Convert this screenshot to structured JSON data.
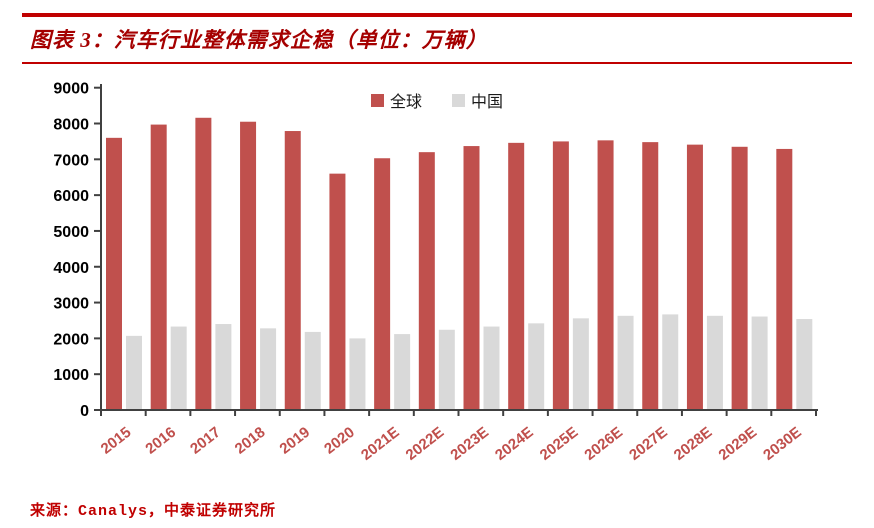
{
  "header": {
    "title": "图表 3：汽车行业整体需求企稳（单位：万辆）"
  },
  "footer": {
    "source": "来源：Canalys，中泰证券研究所"
  },
  "colors": {
    "rule_red": "#c00000",
    "title_red": "#a50000",
    "axis": "#404040",
    "tick_label": "#000000",
    "x_label": "#c0504d",
    "global_bar": "#c0504d",
    "china_bar": "#d9d9d9",
    "source_red": "#c00000"
  },
  "chart_data": {
    "type": "bar",
    "title": "图表 3：汽车行业整体需求企稳（单位：万辆）",
    "categories": [
      "2015",
      "2016",
      "2017",
      "2018",
      "2019",
      "2020",
      "2021E",
      "2022E",
      "2023E",
      "2024E",
      "2025E",
      "2026E",
      "2027E",
      "2028E",
      "2029E",
      "2030E"
    ],
    "series": [
      {
        "name": "全球",
        "color": "#c0504d",
        "values": [
          7600,
          7970,
          8160,
          8050,
          7790,
          6600,
          7030,
          7200,
          7370,
          7460,
          7500,
          7530,
          7480,
          7410,
          7350,
          7290
        ]
      },
      {
        "name": "中国",
        "color": "#d9d9d9",
        "values": [
          2070,
          2330,
          2400,
          2280,
          2180,
          2000,
          2120,
          2240,
          2330,
          2420,
          2560,
          2630,
          2670,
          2630,
          2610,
          2540
        ]
      }
    ],
    "xlabel": "",
    "ylabel": "",
    "ylim": [
      0,
      9000
    ],
    "ytick_step": 1000,
    "yticks": [
      0,
      1000,
      2000,
      3000,
      4000,
      5000,
      6000,
      7000,
      8000,
      9000
    ],
    "grid": false,
    "legend_position": "top-center",
    "unit": "万辆"
  }
}
